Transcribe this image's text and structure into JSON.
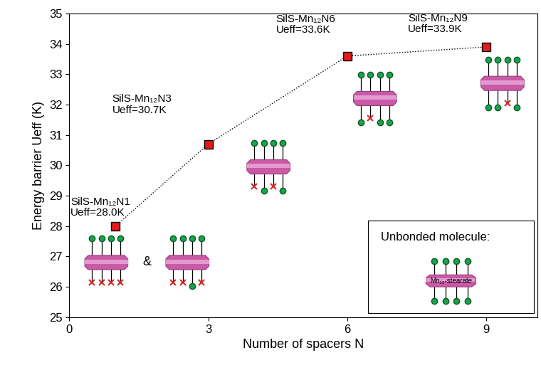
{
  "chart_data": {
    "type": "line",
    "x": [
      1,
      3,
      6,
      9
    ],
    "values": [
      28.0,
      30.7,
      33.6,
      33.9
    ],
    "color": "#e41a1c",
    "marker": "s",
    "line_style": "dotted",
    "xlabel": "Number of spacers N",
    "ylabel": "Energy barrier Ueff (K)",
    "xlim": [
      0,
      10.1
    ],
    "xticks": [
      0,
      3,
      6,
      9
    ],
    "ylim": [
      25,
      35
    ],
    "yticks": [
      25,
      26,
      27,
      28,
      29,
      30,
      31,
      32,
      33,
      34,
      35
    ],
    "annotations": [
      "SilS-Mn₁₂N1\nUeff=28.0K",
      "SilS-Mn₁₂N3\nUeff=30.7K",
      "SilS-Mn₁₂N6\nUeff=33.6K",
      "SilS-Mn₁₂N9\nUeff=33.9K"
    ],
    "separator": "&",
    "inset_title": "Unbonded molecule:",
    "inset_label": "Mn₁₂-stearate"
  }
}
